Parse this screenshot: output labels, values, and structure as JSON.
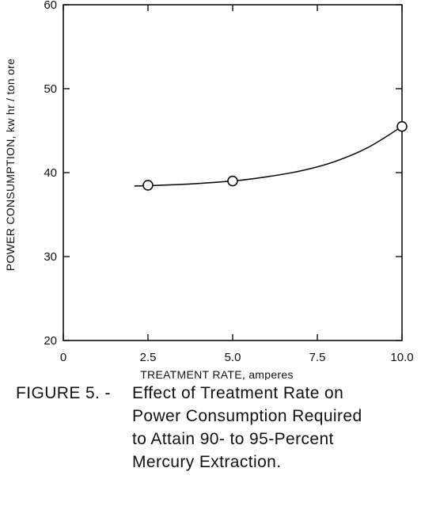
{
  "chart_data": {
    "type": "line",
    "title": "",
    "xlabel": "TREATMENT RATE, amperes",
    "ylabel": "POWER CONSUMPTION, kw hr / ton ore",
    "xlim": [
      0,
      10
    ],
    "ylim": [
      20,
      60
    ],
    "x_ticks": [
      0,
      2.5,
      5,
      7.5,
      10
    ],
    "x_tick_labels": [
      "0",
      "2.5",
      "5.0",
      "7.5",
      "10.0"
    ],
    "y_ticks": [
      20,
      30,
      40,
      50,
      60
    ],
    "y_tick_labels": [
      "20",
      "30",
      "40",
      "50",
      "60"
    ],
    "grid": false,
    "markers": "open-circle",
    "series": [
      {
        "points": [
          {
            "x": 2.5,
            "y": 38.5
          },
          {
            "x": 5.0,
            "y": 39.0
          },
          {
            "x": 10.0,
            "y": 45.5
          }
        ],
        "fit_curve": [
          {
            "x": 2.1,
            "y": 38.4
          },
          {
            "x": 2.5,
            "y": 38.45
          },
          {
            "x": 3.5,
            "y": 38.6
          },
          {
            "x": 5.0,
            "y": 39.0
          },
          {
            "x": 6.0,
            "y": 39.5
          },
          {
            "x": 7.0,
            "y": 40.2
          },
          {
            "x": 8.0,
            "y": 41.3
          },
          {
            "x": 9.0,
            "y": 43.0
          },
          {
            "x": 10.0,
            "y": 45.5
          }
        ]
      }
    ]
  },
  "caption": {
    "lead": "FIGURE 5. -",
    "text": "Effect of Treatment Rate on\nPower Consumption Required\nto Attain 90- to 95-Percent\nMercury Extraction."
  }
}
